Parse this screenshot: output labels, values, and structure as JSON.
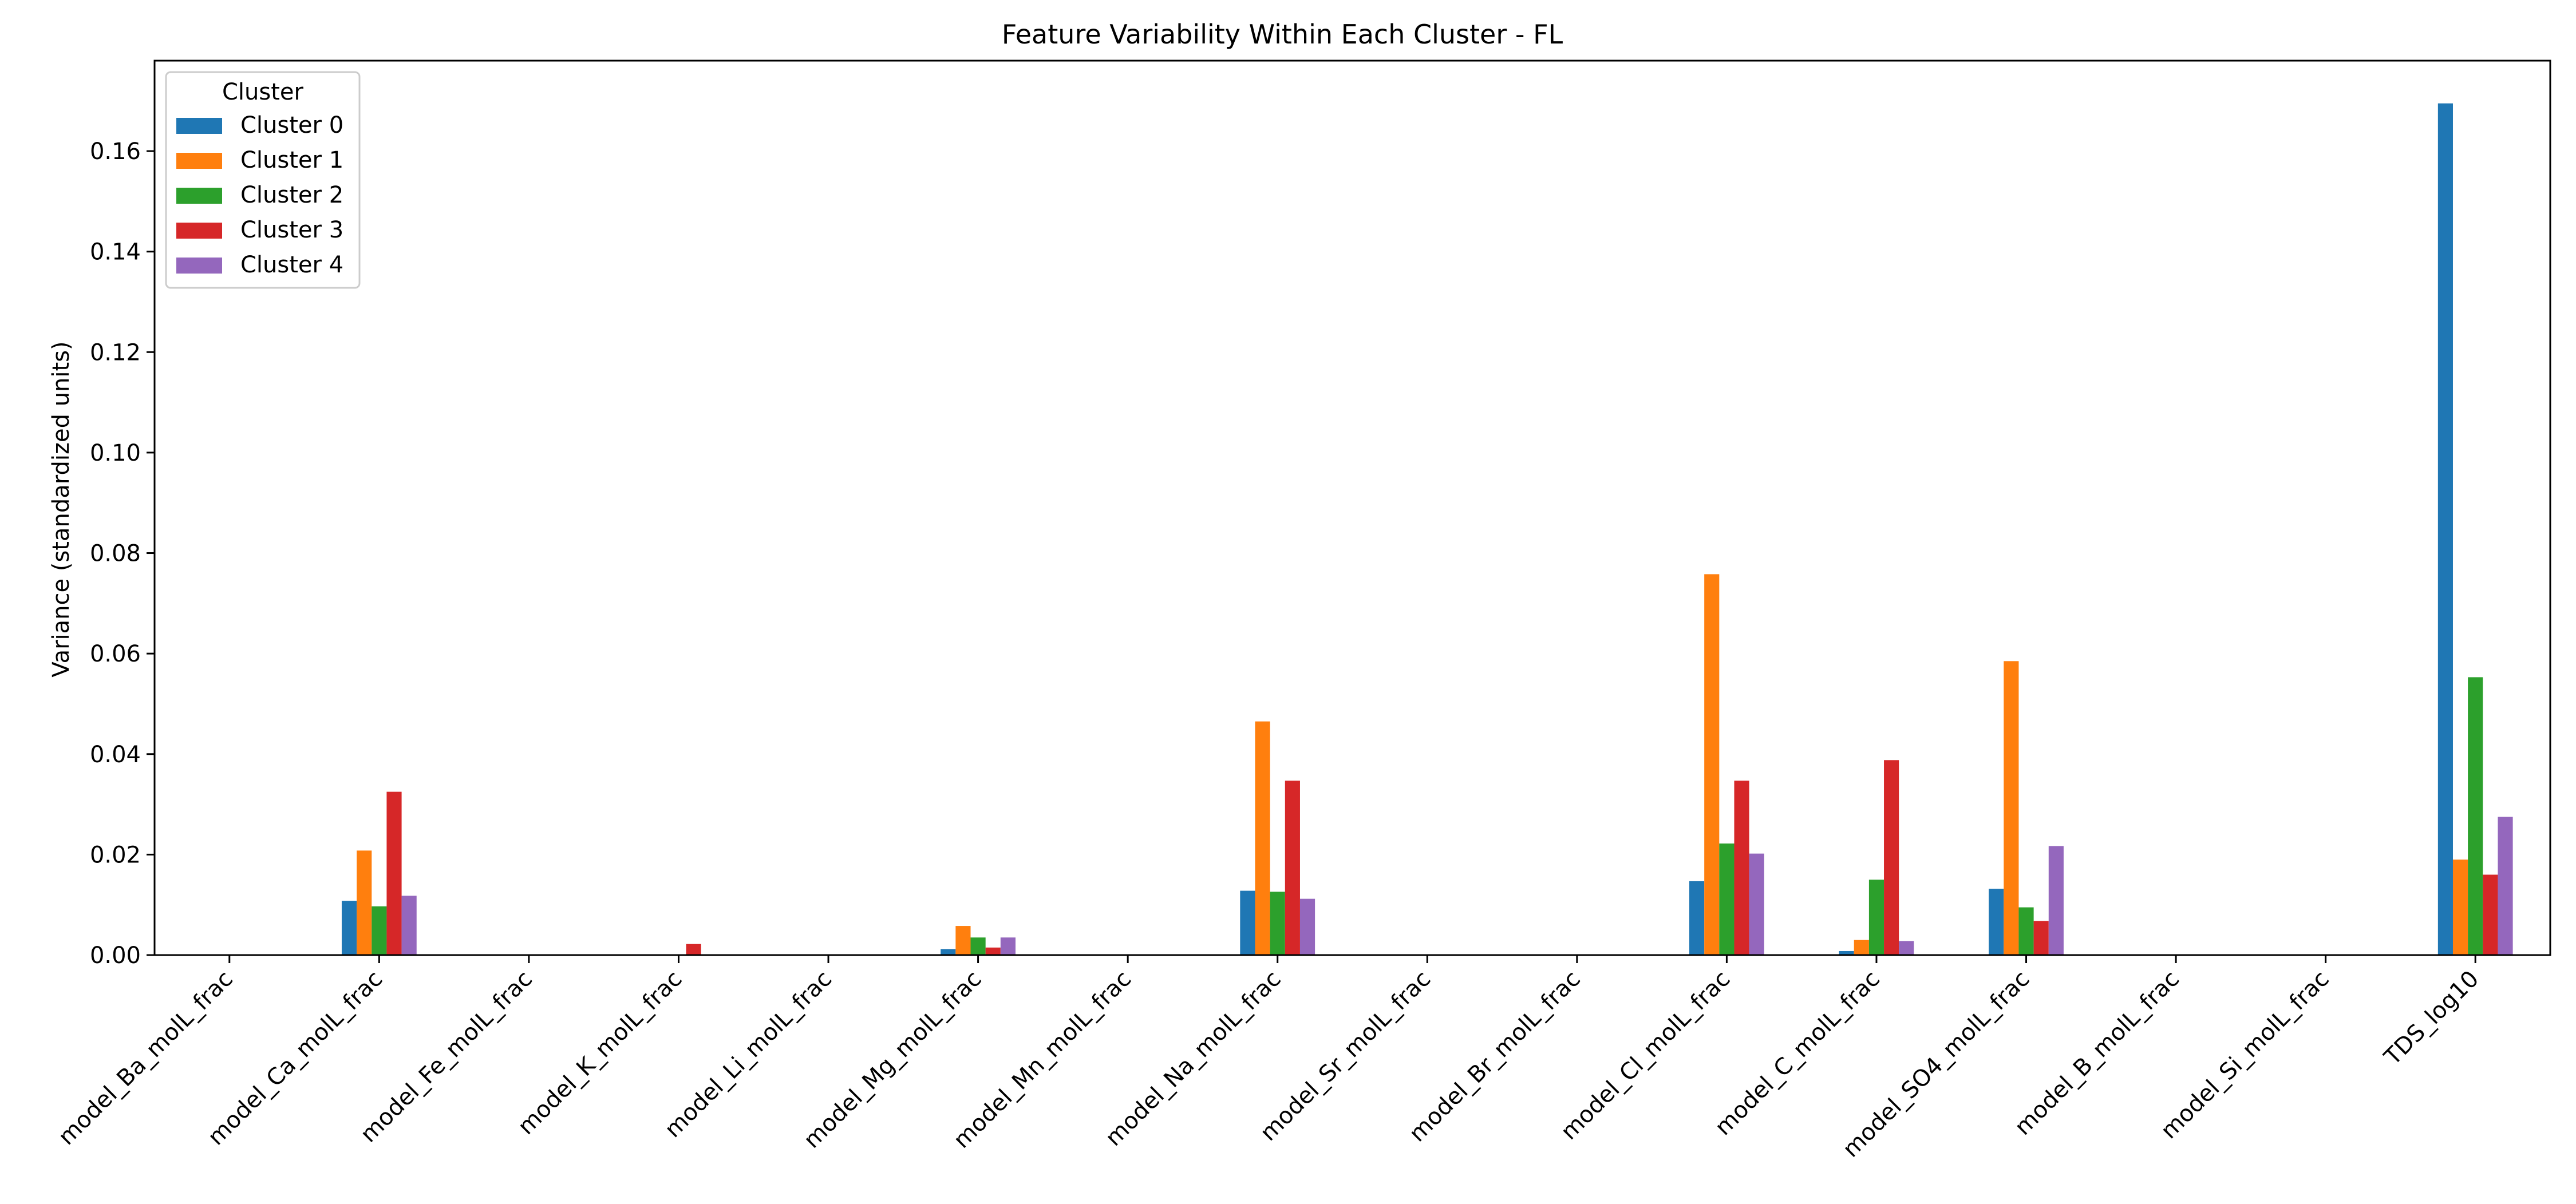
{
  "chart_data": {
    "type": "bar",
    "title": "Feature Variability Within Each Cluster - FL",
    "xlabel": "",
    "ylabel": "Variance (standardized units)",
    "ylim": [
      0,
      0.178
    ],
    "yticks": [
      "0.00",
      "0.02",
      "0.04",
      "0.06",
      "0.08",
      "0.10",
      "0.12",
      "0.14",
      "0.16"
    ],
    "grid": false,
    "legend": {
      "title": "Cluster",
      "placement": "upper-left"
    },
    "categories": [
      "model_Ba_molL_frac",
      "model_Ca_molL_frac",
      "model_Fe_molL_frac",
      "model_K_molL_frac",
      "model_Li_molL_frac",
      "model_Mg_molL_frac",
      "model_Mn_molL_frac",
      "model_Na_molL_frac",
      "model_Sr_molL_frac",
      "model_Br_molL_frac",
      "model_Cl_molL_frac",
      "model_C_molL_frac",
      "model_SO4_molL_frac",
      "model_B_molL_frac",
      "model_Si_molL_frac",
      "TDS_log10"
    ],
    "series": [
      {
        "name": "Cluster 0",
        "color": "#1f77b4",
        "values": [
          0,
          0.0108,
          0,
          0,
          0,
          0.0012,
          0,
          0.0128,
          0,
          0,
          0.0147,
          0.0008,
          0.0132,
          0,
          0,
          0.1695
        ]
      },
      {
        "name": "Cluster 1",
        "color": "#ff7f0e",
        "values": [
          0,
          0.0208,
          0,
          0,
          0,
          0.0058,
          0,
          0.0465,
          0,
          0,
          0.0758,
          0.003,
          0.0585,
          0,
          0,
          0.019
        ]
      },
      {
        "name": "Cluster 2",
        "color": "#2ca02c",
        "values": [
          0,
          0.0097,
          0,
          0,
          0,
          0.0035,
          0,
          0.0126,
          0,
          0,
          0.0222,
          0.015,
          0.0095,
          0,
          0,
          0.0553
        ]
      },
      {
        "name": "Cluster 3",
        "color": "#d62728",
        "values": [
          0,
          0.0325,
          0,
          0.0022,
          0,
          0.0015,
          0,
          0.0347,
          0,
          0,
          0.0347,
          0.0388,
          0.0068,
          0,
          0,
          0.016
        ]
      },
      {
        "name": "Cluster 4",
        "color": "#9467bd",
        "values": [
          0,
          0.0118,
          0,
          0,
          0,
          0.0035,
          0,
          0.0112,
          0,
          0,
          0.0202,
          0.0028,
          0.0217,
          0,
          0,
          0.0275
        ]
      }
    ]
  }
}
